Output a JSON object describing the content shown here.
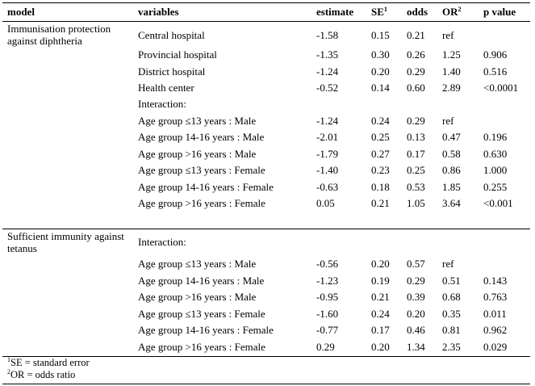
{
  "header": {
    "model": "model",
    "variables": "variables",
    "estimate": "estimate",
    "se": "SE",
    "se_sup": "1",
    "odds": "odds",
    "or": "OR",
    "or_sup": "2",
    "p": "p value"
  },
  "sections": [
    {
      "model": "Immunisation protection against diphtheria",
      "rows": [
        {
          "variable": "Central hospital",
          "estimate": "-1.58",
          "se": "0.15",
          "odds": "0.21",
          "or": "ref",
          "p": ""
        },
        {
          "variable": "Provincial hospital",
          "estimate": "-1.35",
          "se": "0.30",
          "odds": "0.26",
          "or": "1.25",
          "p": "0.906"
        },
        {
          "variable": "District hospital",
          "estimate": "-1.24",
          "se": "0.20",
          "odds": "0.29",
          "or": "1.40",
          "p": "0.516"
        },
        {
          "variable": "Health center",
          "estimate": "-0.52",
          "se": "0.14",
          "odds": "0.60",
          "or": "2.89",
          "p": "<0.0001"
        },
        {
          "variable": "Interaction:",
          "estimate": "",
          "se": "",
          "odds": "",
          "or": "",
          "p": ""
        },
        {
          "variable": "Age group ≤13 years : Male",
          "estimate": "-1.24",
          "se": "0.24",
          "odds": "0.29",
          "or": "ref",
          "p": ""
        },
        {
          "variable": "Age group 14-16 years : Male",
          "estimate": "-2.01",
          "se": "0.25",
          "odds": "0.13",
          "or": "0.47",
          "p": "0.196"
        },
        {
          "variable": "Age group >16 years : Male",
          "estimate": "-1.79",
          "se": "0.27",
          "odds": "0.17",
          "or": "0.58",
          "p": "0.630"
        },
        {
          "variable": "Age group ≤13 years : Female",
          "estimate": "-1.40",
          "se": "0.23",
          "odds": "0.25",
          "or": "0.86",
          "p": "1.000"
        },
        {
          "variable": "Age group 14-16 years : Female",
          "estimate": "-0.63",
          "se": "0.18",
          "odds": "0.53",
          "or": "1.85",
          "p": "0.255"
        },
        {
          "variable": "Age group >16 years : Female",
          "estimate": "0.05",
          "se": "0.21",
          "odds": "1.05",
          "or": "3.64",
          "p": "<0.001"
        }
      ]
    },
    {
      "model": "Sufficient immunity against tetanus",
      "rows": [
        {
          "variable": "Interaction:",
          "estimate": "",
          "se": "",
          "odds": "",
          "or": "",
          "p": ""
        },
        {
          "variable": "Age group ≤13 years : Male",
          "estimate": "-0.56",
          "se": "0.20",
          "odds": "0.57",
          "or": "ref",
          "p": ""
        },
        {
          "variable": "Age group 14-16 years : Male",
          "estimate": "-1.23",
          "se": "0.19",
          "odds": "0.29",
          "or": "0.51",
          "p": "0.143"
        },
        {
          "variable": "Age group >16 years : Male",
          "estimate": "-0.95",
          "se": "0.21",
          "odds": "0.39",
          "or": "0.68",
          "p": "0.763"
        },
        {
          "variable": "Age group ≤13 years : Female",
          "estimate": "-1.60",
          "se": "0.24",
          "odds": "0.20",
          "or": "0.35",
          "p": "0.011"
        },
        {
          "variable": "Age group 14-16 years : Female",
          "estimate": "-0.77",
          "se": "0.17",
          "odds": "0.46",
          "or": "0.81",
          "p": "0.962"
        },
        {
          "variable": "Age group >16 years : Female",
          "estimate": "0.29",
          "se": "0.20",
          "odds": "1.34",
          "or": "2.35",
          "p": "0.029"
        }
      ]
    }
  ],
  "footnotes": [
    {
      "mark": "1",
      "text": "SE = standard error"
    },
    {
      "mark": "2",
      "text": "OR = odds ratio"
    }
  ]
}
